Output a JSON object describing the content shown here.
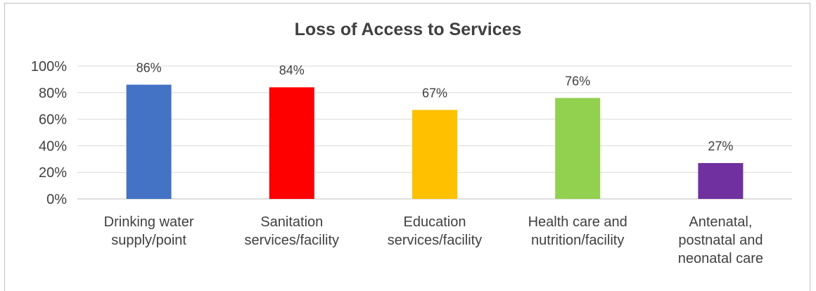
{
  "chart_data": {
    "type": "bar",
    "title": "Loss of Access to Services",
    "categories": [
      [
        "Drinking water",
        "supply/point"
      ],
      [
        "Sanitation",
        "services/facility"
      ],
      [
        "Education",
        "services/facility"
      ],
      [
        "Health care and",
        "nutrition/facility"
      ],
      [
        "Antenatal,",
        "postnatal and",
        "neonatal care"
      ]
    ],
    "values": [
      86,
      84,
      67,
      76,
      27
    ],
    "data_labels": [
      "86%",
      "84%",
      "67%",
      "76%",
      "27%"
    ],
    "colors": [
      "#4472C4",
      "#FF0000",
      "#FFC000",
      "#92D050",
      "#7030A0"
    ],
    "ylim": [
      0,
      100
    ],
    "yticks": [
      0,
      20,
      40,
      60,
      80,
      100
    ],
    "ytick_labels": [
      "0%",
      "20%",
      "40%",
      "60%",
      "80%",
      "100%"
    ],
    "grid": true,
    "legend": "none"
  }
}
